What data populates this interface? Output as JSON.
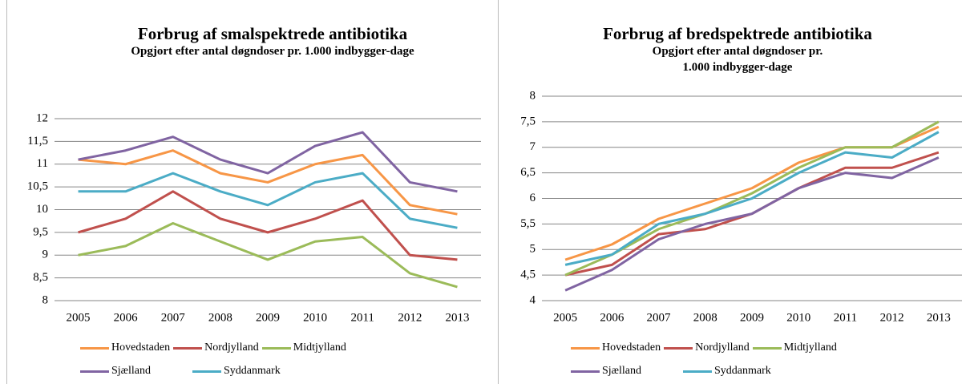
{
  "chart_data": [
    {
      "type": "line",
      "title": "Forbrug af smalspektrede antibiotika",
      "subtitle": "Opgjort efter antal døgndoser pr. 1.000 indbygger-dage",
      "categories": [
        "2005",
        "2006",
        "2007",
        "2008",
        "2009",
        "2010",
        "2011",
        "2012",
        "2013"
      ],
      "series": [
        {
          "name": "Hovedstaden",
          "color": "#f79646",
          "values": [
            11.1,
            11.0,
            11.3,
            10.8,
            10.6,
            11.0,
            11.2,
            10.1,
            9.9
          ]
        },
        {
          "name": "Nordjylland",
          "color": "#c0504d",
          "values": [
            9.5,
            9.8,
            10.4,
            9.8,
            9.5,
            9.8,
            10.2,
            9.0,
            8.9
          ]
        },
        {
          "name": "Midtjylland",
          "color": "#9bbb59",
          "values": [
            9.0,
            9.2,
            9.7,
            9.3,
            8.9,
            9.3,
            9.4,
            8.6,
            8.3
          ]
        },
        {
          "name": "Sjælland",
          "color": "#8064a2",
          "values": [
            11.1,
            11.3,
            11.6,
            11.1,
            10.8,
            11.4,
            11.7,
            10.6,
            10.4
          ]
        },
        {
          "name": "Syddanmark",
          "color": "#4bacc6",
          "values": [
            10.4,
            10.4,
            10.8,
            10.4,
            10.1,
            10.6,
            10.8,
            9.8,
            9.6
          ]
        }
      ],
      "ylim": [
        8,
        12
      ],
      "yticks": [
        8,
        {
          "value": 8.5,
          "label": "8,5"
        },
        9,
        {
          "value": 9.5,
          "label": "9,5"
        },
        10,
        {
          "value": 10.5,
          "label": "10,5"
        },
        11,
        {
          "value": 11.5,
          "label": "11,5"
        },
        12
      ],
      "grid": true,
      "legend": "bottom"
    },
    {
      "type": "line",
      "title": "Forbrug af bredspektrede antibiotika",
      "subtitle": "Opgjort efter antal døgndoser pr. 1.000 indbygger-dage",
      "categories": [
        "2005",
        "2006",
        "2007",
        "2008",
        "2009",
        "2010",
        "2011",
        "2012",
        "2013"
      ],
      "series": [
        {
          "name": "Hovedstaden",
          "color": "#f79646",
          "values": [
            4.8,
            5.1,
            5.6,
            5.9,
            6.2,
            6.7,
            7.0,
            7.0,
            7.4
          ]
        },
        {
          "name": "Nordjylland",
          "color": "#c0504d",
          "values": [
            4.5,
            4.7,
            5.3,
            5.4,
            5.7,
            6.2,
            6.6,
            6.6,
            6.9
          ]
        },
        {
          "name": "Midtjylland",
          "color": "#9bbb59",
          "values": [
            4.5,
            4.9,
            5.4,
            5.7,
            6.1,
            6.6,
            7.0,
            7.0,
            7.5
          ]
        },
        {
          "name": "Sjælland",
          "color": "#8064a2",
          "values": [
            4.2,
            4.6,
            5.2,
            5.5,
            5.7,
            6.2,
            6.5,
            6.4,
            6.8
          ]
        },
        {
          "name": "Syddanmark",
          "color": "#4bacc6",
          "values": [
            4.7,
            4.9,
            5.5,
            5.7,
            6.0,
            6.5,
            6.9,
            6.8,
            7.3
          ]
        }
      ],
      "ylim": [
        4,
        8
      ],
      "yticks": [
        4,
        {
          "value": 4.5,
          "label": "4,5"
        },
        5,
        {
          "value": 5.5,
          "label": "5,5"
        },
        6,
        {
          "value": 6.5,
          "label": "6,5"
        },
        7,
        {
          "value": 7.5,
          "label": "7,5"
        },
        8
      ],
      "grid": true,
      "legend": "bottom"
    }
  ]
}
